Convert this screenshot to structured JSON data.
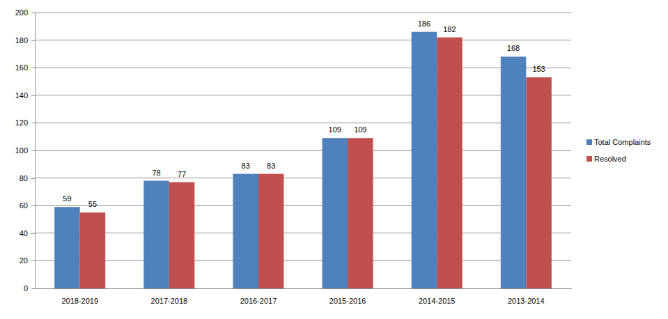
{
  "chart_data": {
    "type": "bar",
    "categories": [
      "2018-2019",
      "2017-2018",
      "2016-2017",
      "2015-2016",
      "2014-2015",
      "2013-2014"
    ],
    "series": [
      {
        "name": "Total Complaints",
        "color": "#4f81bd",
        "values": [
          59,
          78,
          83,
          109,
          186,
          168
        ]
      },
      {
        "name": "Resolved",
        "color": "#c0504d",
        "values": [
          55,
          77,
          83,
          109,
          182,
          153
        ]
      }
    ],
    "ylim": [
      0,
      200
    ],
    "yticks": [
      0,
      20,
      40,
      60,
      80,
      100,
      120,
      140,
      160,
      180,
      200
    ],
    "grid": true,
    "legend": "right",
    "data_labels": true
  }
}
